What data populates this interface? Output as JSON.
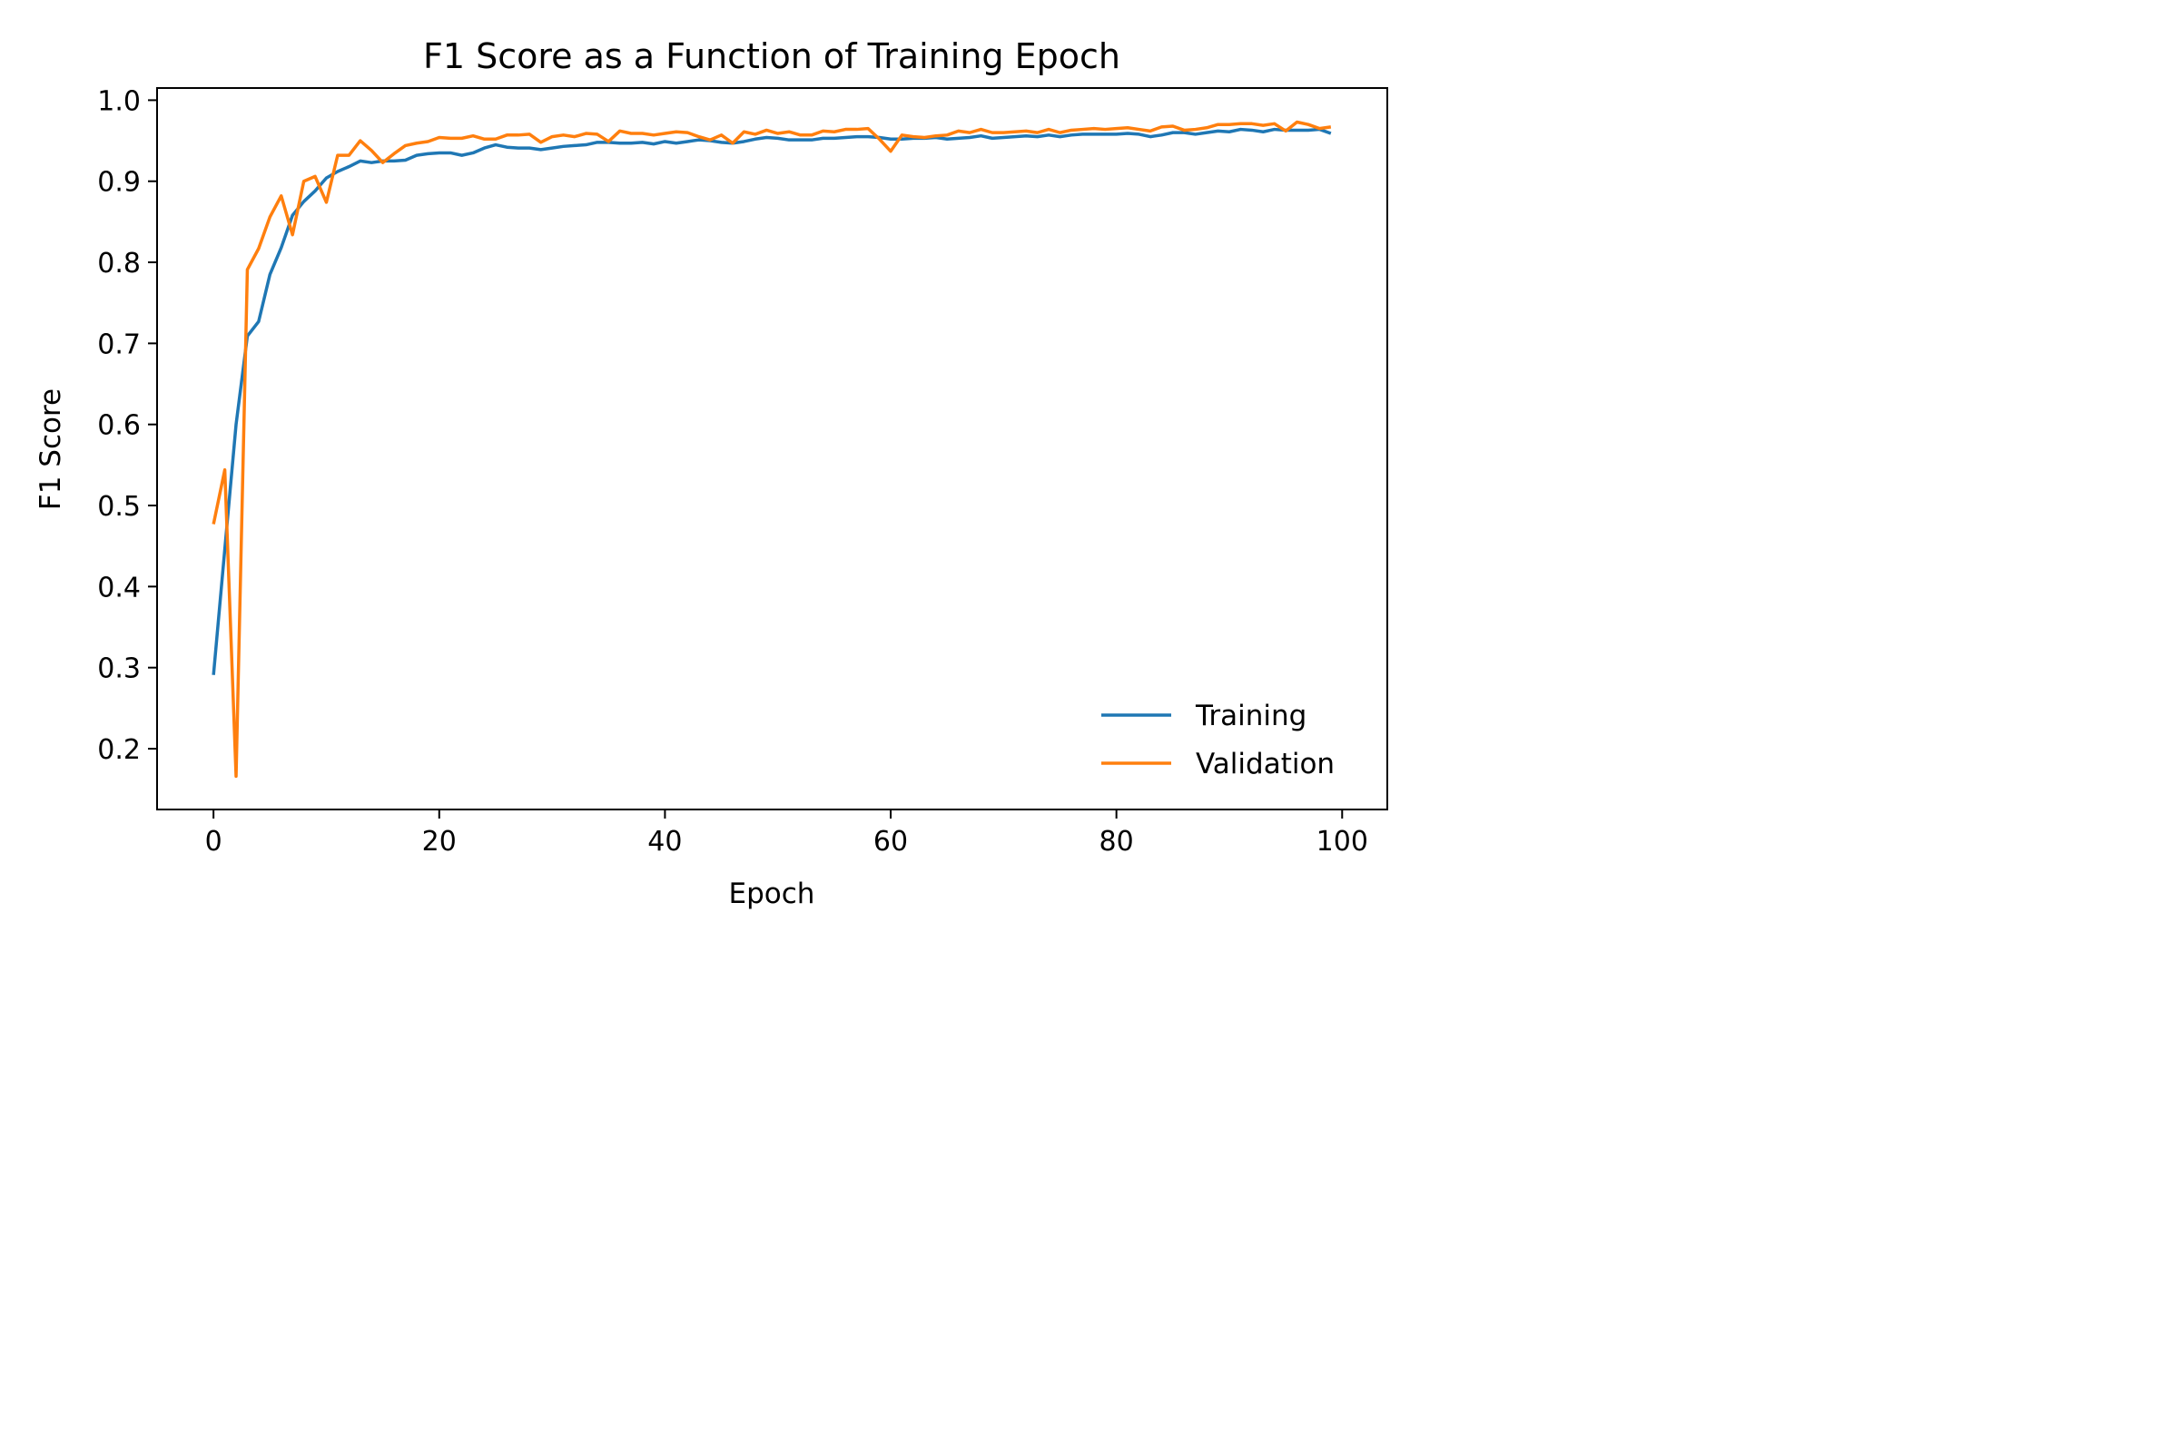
{
  "chart_data": {
    "type": "line",
    "title": "F1 Score as a Function of Training Epoch",
    "xlabel": "Epoch",
    "ylabel": "F1 Score",
    "xlim": [
      -5,
      104
    ],
    "ylim": [
      0.125,
      1.015
    ],
    "xticks": [
      0,
      20,
      40,
      60,
      80,
      100
    ],
    "yticks": [
      0.2,
      0.3,
      0.4,
      0.5,
      0.6,
      0.7,
      0.8,
      0.9,
      1.0
    ],
    "grid": false,
    "legend_position": "bottom-right",
    "series": [
      {
        "name": "Training",
        "color": "#1f77b4",
        "x_start": 0,
        "values": [
          0.291,
          0.446,
          0.6,
          0.709,
          0.727,
          0.785,
          0.818,
          0.858,
          0.875,
          0.888,
          0.904,
          0.912,
          0.918,
          0.925,
          0.923,
          0.925,
          0.925,
          0.926,
          0.932,
          0.934,
          0.935,
          0.935,
          0.932,
          0.935,
          0.941,
          0.945,
          0.942,
          0.941,
          0.941,
          0.939,
          0.941,
          0.943,
          0.944,
          0.945,
          0.948,
          0.948,
          0.947,
          0.947,
          0.948,
          0.946,
          0.949,
          0.947,
          0.949,
          0.951,
          0.95,
          0.948,
          0.947,
          0.949,
          0.952,
          0.954,
          0.953,
          0.951,
          0.951,
          0.951,
          0.953,
          0.953,
          0.954,
          0.955,
          0.955,
          0.954,
          0.952,
          0.952,
          0.953,
          0.953,
          0.954,
          0.952,
          0.953,
          0.954,
          0.956,
          0.953,
          0.954,
          0.955,
          0.956,
          0.955,
          0.957,
          0.955,
          0.957,
          0.958,
          0.958,
          0.958,
          0.958,
          0.959,
          0.958,
          0.955,
          0.957,
          0.96,
          0.96,
          0.958,
          0.96,
          0.962,
          0.961,
          0.964,
          0.963,
          0.961,
          0.964,
          0.963,
          0.963,
          0.963,
          0.964,
          0.959
        ]
      },
      {
        "name": "Validation",
        "color": "#ff7f0e",
        "x_start": 0,
        "values": [
          0.477,
          0.544,
          0.166,
          0.791,
          0.817,
          0.856,
          0.882,
          0.834,
          0.9,
          0.906,
          0.874,
          0.932,
          0.932,
          0.95,
          0.938,
          0.923,
          0.934,
          0.944,
          0.947,
          0.949,
          0.954,
          0.953,
          0.953,
          0.956,
          0.952,
          0.952,
          0.957,
          0.957,
          0.958,
          0.948,
          0.955,
          0.957,
          0.955,
          0.959,
          0.958,
          0.949,
          0.962,
          0.959,
          0.959,
          0.957,
          0.959,
          0.961,
          0.96,
          0.955,
          0.951,
          0.957,
          0.947,
          0.961,
          0.958,
          0.963,
          0.959,
          0.961,
          0.957,
          0.957,
          0.962,
          0.961,
          0.964,
          0.964,
          0.965,
          0.952,
          0.937,
          0.957,
          0.955,
          0.954,
          0.956,
          0.957,
          0.962,
          0.96,
          0.964,
          0.96,
          0.96,
          0.961,
          0.962,
          0.96,
          0.964,
          0.96,
          0.963,
          0.964,
          0.965,
          0.964,
          0.965,
          0.966,
          0.964,
          0.962,
          0.967,
          0.968,
          0.963,
          0.964,
          0.966,
          0.97,
          0.97,
          0.971,
          0.971,
          0.969,
          0.971,
          0.962,
          0.973,
          0.97,
          0.965,
          0.967
        ]
      }
    ]
  }
}
